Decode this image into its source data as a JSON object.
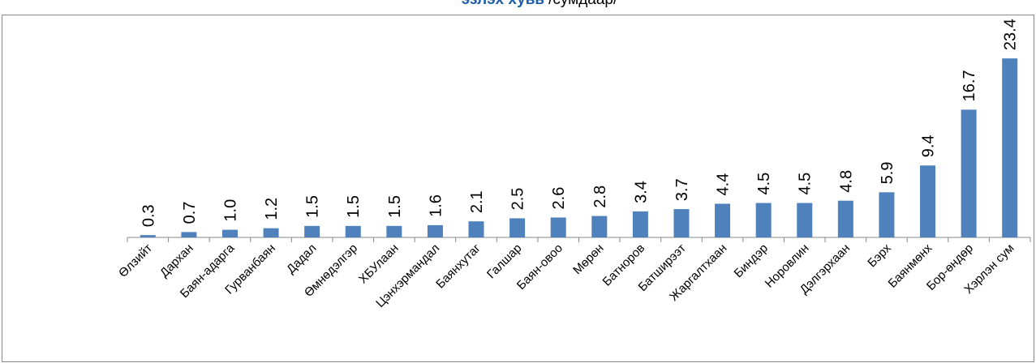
{
  "chart_data": {
    "type": "bar",
    "title": "эзлэх хувь",
    "subtitle": "/сумдаар/",
    "categories": [
      "Өлзийт",
      "Дархан",
      "Баян-адарга",
      "Гурванбаян",
      "Дадал",
      "Өмнөдэлгэр",
      "ХБУлаан",
      "Цэнхэрмандал",
      "Баянхутаг",
      "Галшар",
      "Баян-овоо",
      "Мөрөн",
      "Батноров",
      "Батширээт",
      "Жаргалтхаан",
      "Биндэр",
      "Норовлин",
      "Дэлгэрхаан",
      "Бэрх",
      "Баянмөнх",
      "Бор-өндөр",
      "Хэрлэн сум"
    ],
    "values": [
      0.3,
      0.7,
      1.0,
      1.2,
      1.5,
      1.5,
      1.5,
      1.6,
      2.1,
      2.5,
      2.6,
      2.8,
      3.4,
      3.7,
      4.4,
      4.5,
      4.5,
      4.8,
      5.9,
      9.4,
      16.7,
      23.4
    ],
    "value_labels": [
      "0.3",
      "0.7",
      "1.0",
      "1.2",
      "1.5",
      "1.5",
      "1.5",
      "1.6",
      "2.1",
      "2.5",
      "2.6",
      "2.8",
      "3.4",
      "3.7",
      "4.4",
      "4.5",
      "4.5",
      "4.8",
      "5.9",
      "9.4",
      "16.7",
      "23.4"
    ],
    "color": "#4f81bd",
    "ylim": [
      0,
      25
    ]
  }
}
